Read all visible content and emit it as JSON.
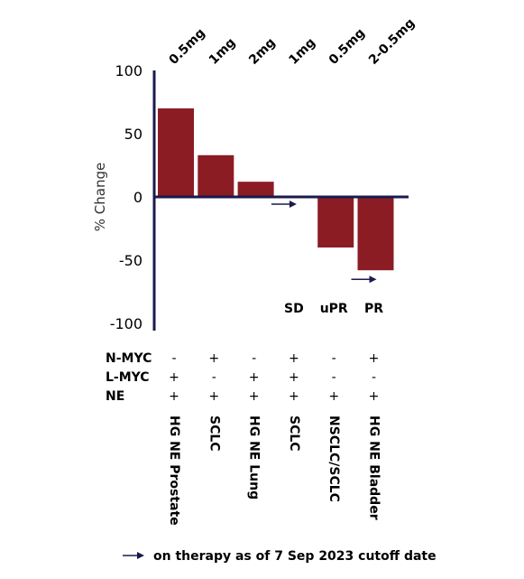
{
  "chart_data": {
    "type": "bar",
    "categories": [
      "HG NE Prostate",
      "SCLC",
      "HG NE Lung",
      "SCLC",
      "NSCLC/SCLC",
      "HG NE Bladder"
    ],
    "doses": [
      "0.5mg",
      "1mg",
      "2mg",
      "1mg",
      "0.5mg",
      "2-0.5mg"
    ],
    "values": [
      70,
      33,
      12,
      0,
      -40,
      -58
    ],
    "responses": [
      "",
      "",
      "",
      "SD",
      "uPR",
      "PR"
    ],
    "on_therapy": [
      false,
      false,
      false,
      true,
      false,
      true
    ],
    "ylabel": "% Change",
    "ylim": [
      -100,
      100
    ],
    "yticks": [
      "100",
      "50",
      "0",
      "-50",
      "-100"
    ],
    "bar_color": "#8b1c24",
    "axis_color": "#1a1a4e",
    "markers": [
      {
        "label": "N-MYC",
        "values": [
          "-",
          "+",
          "-",
          "+",
          "-",
          "+"
        ]
      },
      {
        "label": "L-MYC",
        "values": [
          "+",
          "-",
          "+",
          "+",
          "-",
          "-"
        ]
      },
      {
        "label": "NE",
        "values": [
          "+",
          "+",
          "+",
          "+",
          "+",
          "+"
        ]
      }
    ],
    "legend": "on therapy as of 7 Sep 2023 cutoff date"
  }
}
